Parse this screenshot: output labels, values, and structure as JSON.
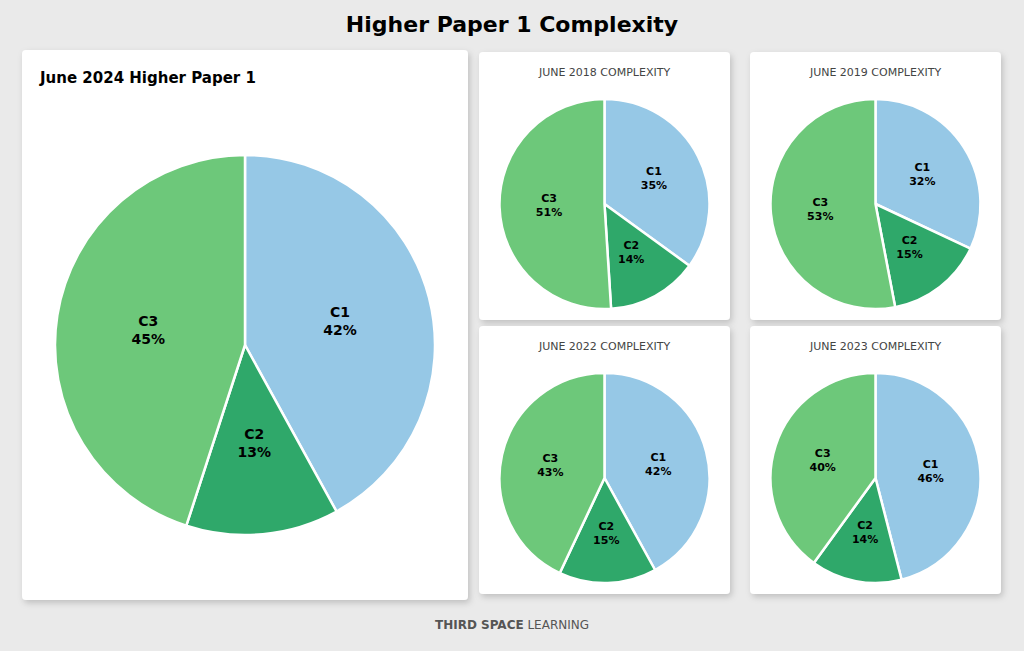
{
  "title": "Higher Paper 1 Complexity",
  "annotations": [
    "THIRD SPACE",
    "LEARNING"
  ],
  "chart_data": [
    {
      "type": "pie",
      "title": "June 2024 Higher Paper 1",
      "categories": [
        "C1",
        "C2",
        "C3"
      ],
      "values": [
        42,
        13,
        45
      ],
      "value_labels": [
        "42%",
        "13%",
        "45%"
      ],
      "colors": [
        "#96c8e6",
        "#2fa86a",
        "#6dc87a"
      ],
      "data_labels": true
    },
    {
      "type": "pie",
      "title": "JUNE 2018 COMPLEXITY",
      "categories": [
        "C1",
        "C2",
        "C3"
      ],
      "values": [
        35,
        14,
        51
      ],
      "value_labels": [
        "35%",
        "14%",
        "51%"
      ],
      "colors": [
        "#96c8e6",
        "#2fa86a",
        "#6dc87a"
      ],
      "data_labels": true
    },
    {
      "type": "pie",
      "title": "JUNE 2019 COMPLEXITY",
      "categories": [
        "C1",
        "C2",
        "C3"
      ],
      "values": [
        32,
        15,
        53
      ],
      "value_labels": [
        "32%",
        "15%",
        "53%"
      ],
      "colors": [
        "#96c8e6",
        "#2fa86a",
        "#6dc87a"
      ],
      "data_labels": true
    },
    {
      "type": "pie",
      "title": "JUNE 2022 COMPLEXITY",
      "categories": [
        "C1",
        "C2",
        "C3"
      ],
      "values": [
        42,
        15,
        43
      ],
      "value_labels": [
        "42%",
        "15%",
        "43%"
      ],
      "colors": [
        "#96c8e6",
        "#2fa86a",
        "#6dc87a"
      ],
      "data_labels": true
    },
    {
      "type": "pie",
      "title": "JUNE 2023 COMPLEXITY",
      "categories": [
        "C1",
        "C2",
        "C3"
      ],
      "values": [
        46,
        14,
        40
      ],
      "value_labels": [
        "46%",
        "14%",
        "40%"
      ],
      "colors": [
        "#96c8e6",
        "#2fa86a",
        "#6dc87a"
      ],
      "data_labels": true
    }
  ]
}
